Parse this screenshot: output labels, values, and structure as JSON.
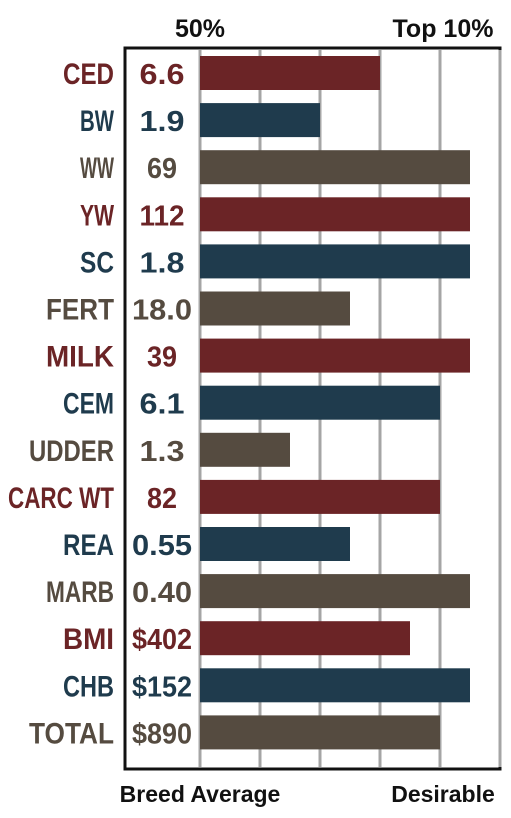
{
  "chart_data": {
    "type": "bar",
    "orientation": "horizontal",
    "title": "",
    "top_labels": {
      "left": "50%",
      "right": "Top 10%"
    },
    "bottom_labels": {
      "left": "Breed Average",
      "right": "Desirable"
    },
    "xlim": [
      0,
      5
    ],
    "grid": true,
    "rows": [
      {
        "trait": "CED",
        "value": "6.6",
        "bar": 3.0,
        "color": "#6b2426"
      },
      {
        "trait": "BW",
        "value": "1.9",
        "bar": 2.0,
        "color": "#1f3b4d"
      },
      {
        "trait": "WW",
        "value": "69",
        "bar": 4.5,
        "color": "#554b40"
      },
      {
        "trait": "YW",
        "value": "112",
        "bar": 4.5,
        "color": "#6b2426"
      },
      {
        "trait": "SC",
        "value": "1.8",
        "bar": 4.5,
        "color": "#1f3b4d"
      },
      {
        "trait": "FERT",
        "value": "18.0",
        "bar": 2.5,
        "color": "#554b40"
      },
      {
        "trait": "MILK",
        "value": "39",
        "bar": 4.5,
        "color": "#6b2426"
      },
      {
        "trait": "CEM",
        "value": "6.1",
        "bar": 4.0,
        "color": "#1f3b4d"
      },
      {
        "trait": "UDDER",
        "value": "1.3",
        "bar": 1.5,
        "color": "#554b40"
      },
      {
        "trait": "CARC WT",
        "value": "82",
        "bar": 4.0,
        "color": "#6b2426"
      },
      {
        "trait": "REA",
        "value": "0.55",
        "bar": 2.5,
        "color": "#1f3b4d"
      },
      {
        "trait": "MARB",
        "value": "0.40",
        "bar": 4.5,
        "color": "#554b40"
      },
      {
        "trait": "BMI",
        "value": "$402",
        "bar": 3.5,
        "color": "#6b2426"
      },
      {
        "trait": "CHB",
        "value": "$152",
        "bar": 4.5,
        "color": "#1f3b4d"
      },
      {
        "trait": "TOTAL",
        "value": "$890",
        "bar": 4.0,
        "color": "#554b40"
      }
    ]
  }
}
